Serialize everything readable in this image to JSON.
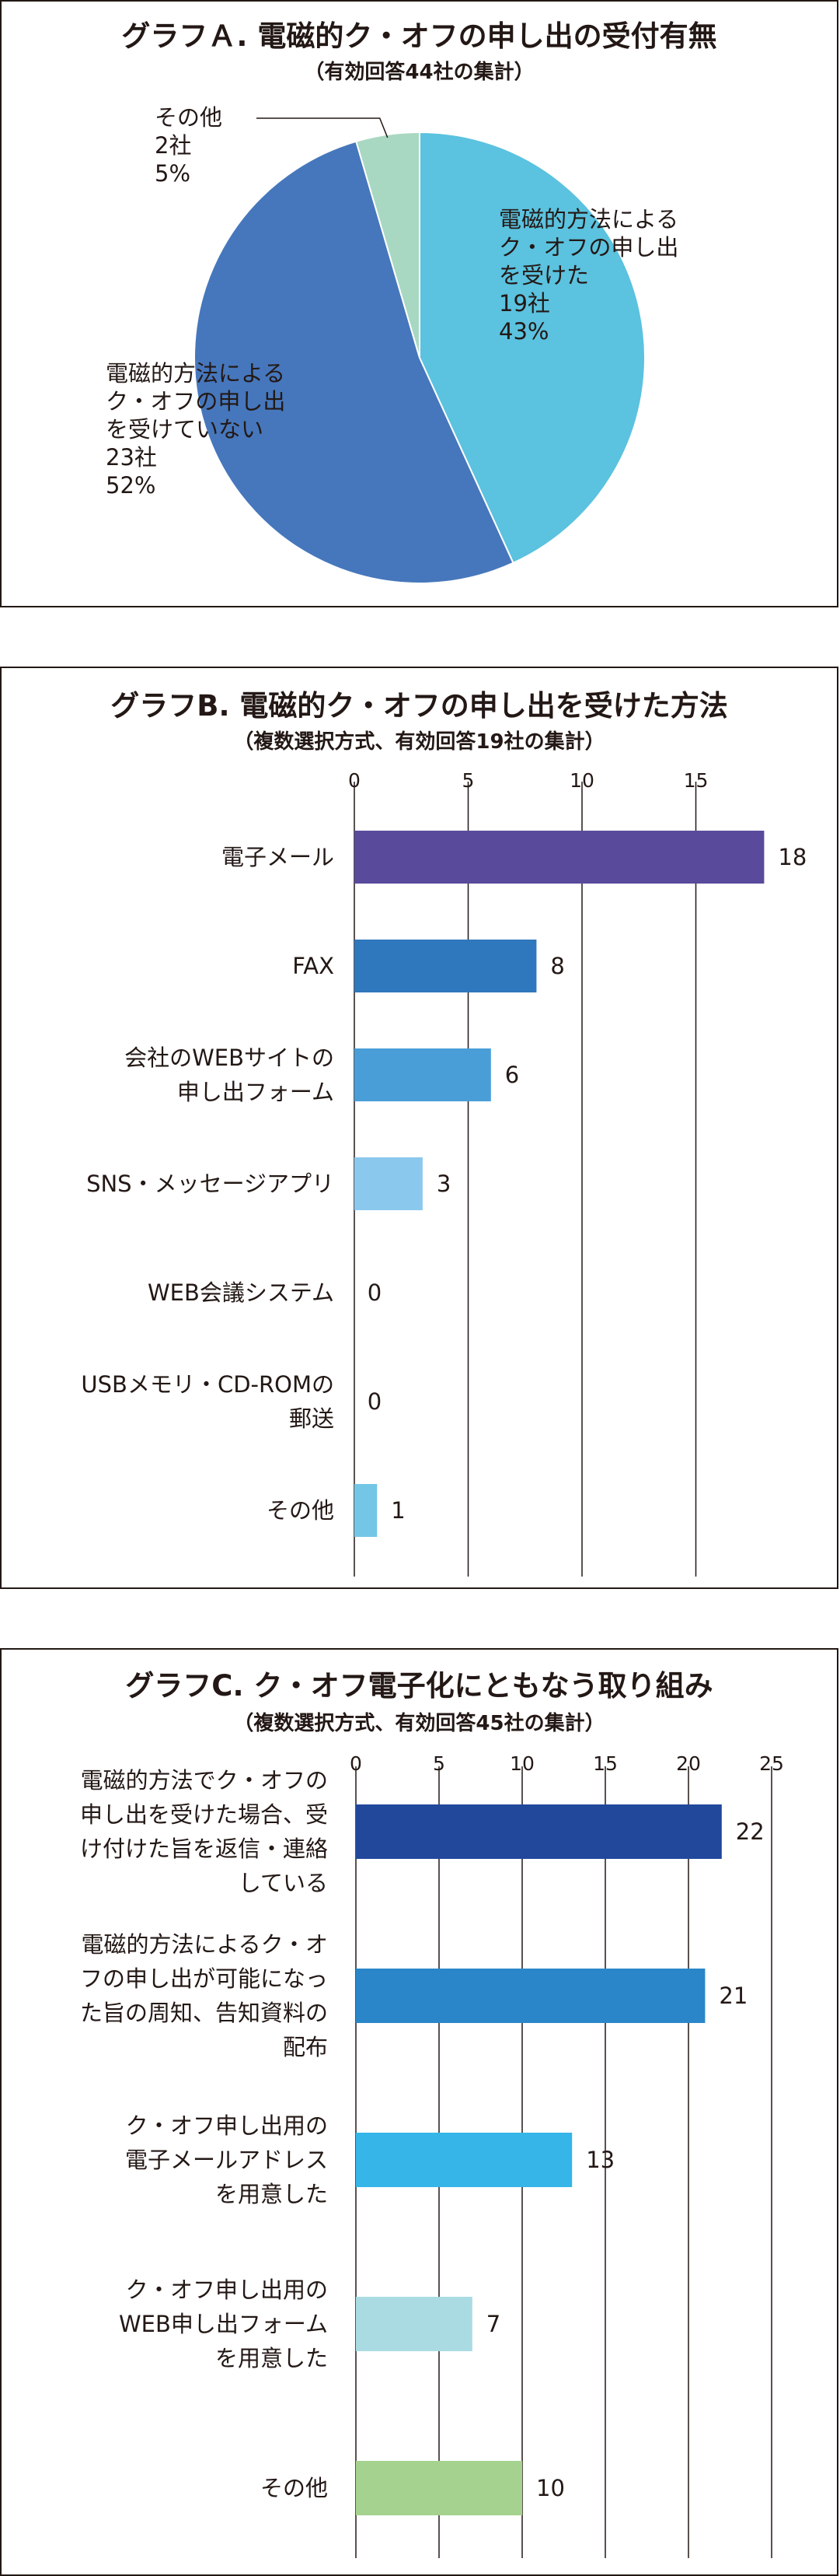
{
  "chart_data": [
    {
      "type": "pie",
      "title": "グラフＡ. 電磁的ク・オフの申し出の受付有無",
      "subtitle": "（有効回答44社の集計）",
      "slices": [
        {
          "label": [
            "電磁的方法による",
            "ク・オフの申し出",
            "を受けた"
          ],
          "count": "19社",
          "percent": "43%",
          "value": 19,
          "color": "#5bc2df"
        },
        {
          "label": [
            "電磁的方法による",
            "ク・オフの申し出",
            "を受けていない"
          ],
          "count": "23社",
          "percent": "52%",
          "value": 23,
          "color": "#4677bc"
        },
        {
          "label": [
            "その他"
          ],
          "count": "2社",
          "percent": "5%",
          "value": 2,
          "color": "#a8d8c2"
        }
      ]
    },
    {
      "type": "bar",
      "orientation": "horizontal",
      "title": "グラフB. 電磁的ク・オフの申し出を受けた方法",
      "subtitle": "（複数選択方式、有効回答19社の集計）",
      "xticks": [
        0,
        5,
        10,
        15
      ],
      "xlim": [
        0,
        18
      ],
      "grid": true,
      "categories": [
        [
          "電子メール"
        ],
        [
          "FAX"
        ],
        [
          "会社のWEBサイトの",
          "申し出フォーム"
        ],
        [
          "SNS・メッセージアプリ"
        ],
        [
          "WEB会議システム"
        ],
        [
          "USBメモリ・CD-ROMの",
          "郵送"
        ],
        [
          "その他"
        ]
      ],
      "values": [
        18,
        8,
        6,
        3,
        0,
        0,
        1
      ],
      "colors": [
        "#5a4a9c",
        "#2f78bd",
        "#4a9ed8",
        "#8bc8ee",
        "#8bc8ee",
        "#8bc8ee",
        "#74c6e6"
      ]
    },
    {
      "type": "bar",
      "orientation": "horizontal",
      "title": "グラフC. ク・オフ電子化にともなう取り組み",
      "subtitle": "（複数選択方式、有効回答45社の集計）",
      "xticks": [
        0,
        5,
        10,
        15,
        20,
        25
      ],
      "xlim": [
        0,
        25
      ],
      "grid": true,
      "categories": [
        [
          "電磁的方法でク・オフの",
          "申し出を受けた場合、受",
          "け付けた旨を返信・連絡",
          "している"
        ],
        [
          "電磁的方法によるク・オ",
          "フの申し出が可能になっ",
          "た旨の周知、告知資料の",
          "配布"
        ],
        [
          "ク・オフ申し出用の",
          "電子メールアドレス",
          "を用意した"
        ],
        [
          "ク・オフ申し出用の",
          "WEB申し出フォーム",
          "を用意した"
        ],
        [
          "その他"
        ]
      ],
      "values": [
        22,
        21,
        13,
        7,
        10
      ],
      "colors": [
        "#21489b",
        "#2a86c8",
        "#35b5e8",
        "#aadbe3",
        "#a5d28e"
      ]
    }
  ]
}
